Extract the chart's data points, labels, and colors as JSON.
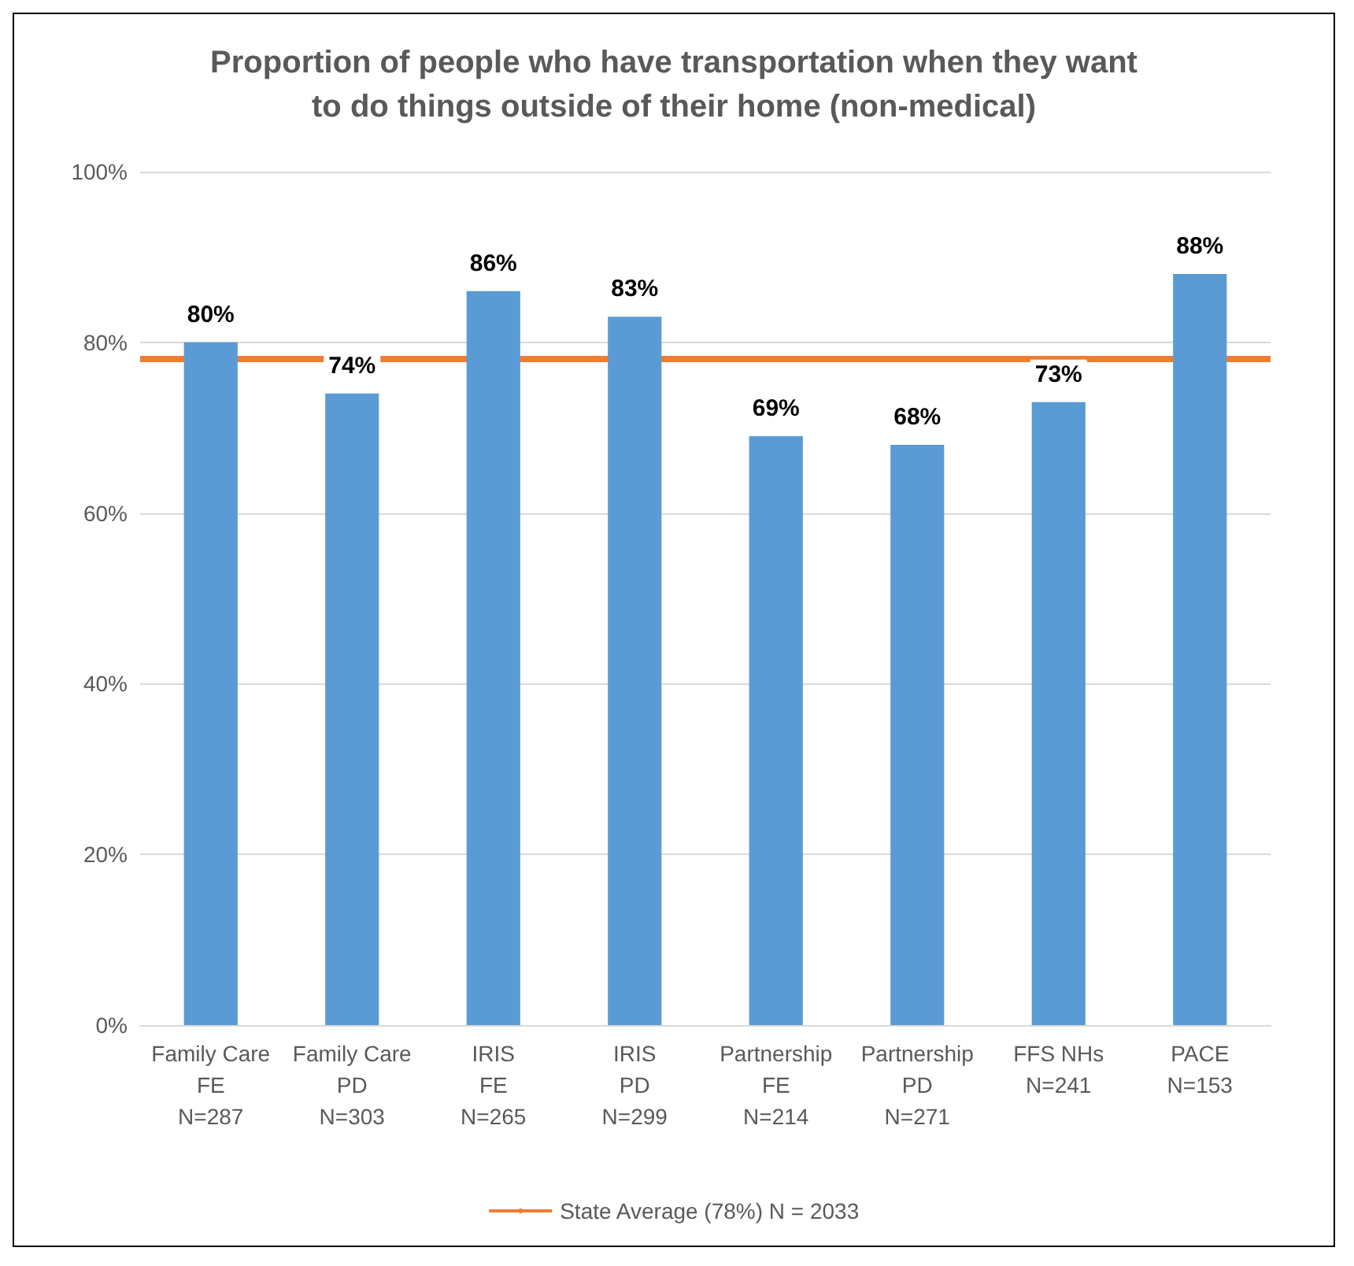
{
  "chart_data": {
    "type": "bar",
    "title": "Proportion of people who have transportation when they want\nto do things outside of their home (non-medical)",
    "categories": [
      "Family Care\nFE\nN=287",
      "Family Care\nPD\nN=303",
      "IRIS\nFE\nN=265",
      "IRIS\nPD\nN=299",
      "Partnership\nFE\nN=214",
      "Partnership\nPD\nN=271",
      "FFS NHs\nN=241",
      "PACE\nN=153"
    ],
    "values": [
      80,
      74,
      86,
      83,
      69,
      68,
      73,
      88
    ],
    "value_labels": [
      "80%",
      "74%",
      "86%",
      "83%",
      "69%",
      "68%",
      "73%",
      "88%"
    ],
    "color": "#5b9bd5",
    "ylim": [
      0,
      100
    ],
    "yticks": [
      {
        "value": 0,
        "label": "0%"
      },
      {
        "value": 20,
        "label": "20%"
      },
      {
        "value": 40,
        "label": "40%"
      },
      {
        "value": 60,
        "label": "60%"
      },
      {
        "value": 80,
        "label": "80%"
      },
      {
        "value": 100,
        "label": "100%"
      }
    ],
    "grid": "y",
    "legend": "bottom",
    "ref_lines": [
      {
        "axis": "y",
        "value": 78,
        "label": "State Average (78%) N = 2033",
        "color": "#ed7d31"
      }
    ]
  }
}
